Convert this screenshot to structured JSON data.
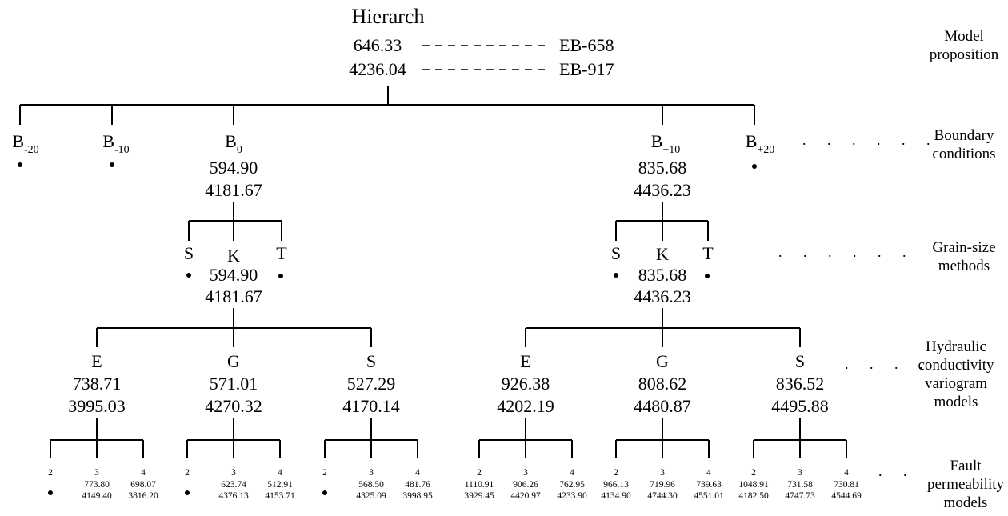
{
  "root": {
    "title": "Hierarch",
    "row1": {
      "value": "646.33",
      "label": "EB-658"
    },
    "row2": {
      "value": "4236.04",
      "label": "EB-917"
    }
  },
  "side_labels": {
    "model_proposition": "Model proposition",
    "boundary_conditions": "Boundary conditions",
    "grain_size_methods": "Grain-size methods",
    "hydraulic_variogram": "Hydraulic conductivity variogram models",
    "fault_permeability": "Fault permeability models"
  },
  "ellipsis": ". . . . . .",
  "ellipsis_short": ". . . .",
  "ellipsis_two": ". .",
  "boundary": {
    "b_m20": {
      "base": "B",
      "sub": "-20"
    },
    "b_m10": {
      "base": "B",
      "sub": "-10"
    },
    "b_0": {
      "base": "B",
      "sub": "0",
      "v1": "594.90",
      "v2": "4181.67"
    },
    "b_p10": {
      "base": "B",
      "sub": "+10",
      "v1": "835.68",
      "v2": "4436.23"
    },
    "b_p20": {
      "base": "B",
      "sub": "+20"
    }
  },
  "grain_left": {
    "s": "S",
    "k": "K",
    "t": "T",
    "v1": "594.90",
    "v2": "4181.67"
  },
  "grain_right": {
    "s": "S",
    "k": "K",
    "t": "T",
    "v1": "835.68",
    "v2": "4436.23"
  },
  "variogram": [
    {
      "label": "E",
      "v1": "738.71",
      "v2": "3995.03"
    },
    {
      "label": "G",
      "v1": "571.01",
      "v2": "4270.32"
    },
    {
      "label": "S",
      "v1": "527.29",
      "v2": "4170.14"
    },
    {
      "label": "E",
      "v1": "926.38",
      "v2": "4202.19"
    },
    {
      "label": "G",
      "v1": "808.62",
      "v2": "4480.87"
    },
    {
      "label": "S",
      "v1": "836.52",
      "v2": "4495.88"
    }
  ],
  "fault": [
    [
      {
        "label": "2",
        "v1": "",
        "v2": ""
      },
      {
        "label": "3",
        "v1": "773.80",
        "v2": "4149.40"
      },
      {
        "label": "4",
        "v1": "698.07",
        "v2": "3816.20"
      }
    ],
    [
      {
        "label": "2",
        "v1": "",
        "v2": ""
      },
      {
        "label": "3",
        "v1": "623.74",
        "v2": "4376.13"
      },
      {
        "label": "4",
        "v1": "512.91",
        "v2": "4153.71"
      }
    ],
    [
      {
        "label": "2",
        "v1": "",
        "v2": ""
      },
      {
        "label": "3",
        "v1": "568.50",
        "v2": "4325.09"
      },
      {
        "label": "4",
        "v1": "481.76",
        "v2": "3998.95"
      }
    ],
    [
      {
        "label": "2",
        "v1": "1110.91",
        "v2": "3929.45"
      },
      {
        "label": "3",
        "v1": "906.26",
        "v2": "4420.97"
      },
      {
        "label": "4",
        "v1": "762.95",
        "v2": "4233.90"
      }
    ],
    [
      {
        "label": "2",
        "v1": "966.13",
        "v2": "4134.90"
      },
      {
        "label": "3",
        "v1": "719.96",
        "v2": "4744.30"
      },
      {
        "label": "4",
        "v1": "739.63",
        "v2": "4551.01"
      }
    ],
    [
      {
        "label": "2",
        "v1": "1048.91",
        "v2": "4182.50"
      },
      {
        "label": "3",
        "v1": "731.58",
        "v2": "4747.73"
      },
      {
        "label": "4",
        "v1": "730.81",
        "v2": "4544.69"
      }
    ]
  ]
}
